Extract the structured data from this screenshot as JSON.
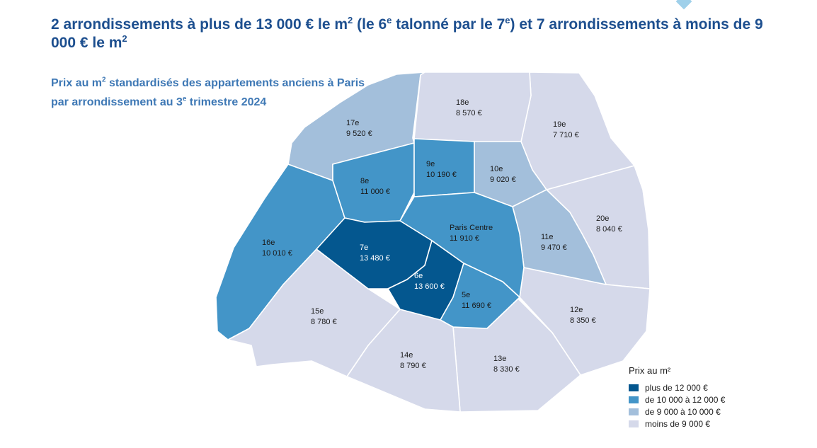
{
  "headline": {
    "part1": "2 arrondissements à plus de 13 000 € le m",
    "sup1": "2",
    "part2": " (le 6",
    "sup2": "e",
    "part3": " talonné par le 7",
    "sup3": "e",
    "part4": ") et 7 arrondissements à moins de 9 000 € le m",
    "sup4": "2"
  },
  "subtitle": {
    "part1": "Prix au m",
    "sup1": "2",
    "part2": " standardisés des appartements anciens à Paris par arrondissement au 3",
    "sup2": "e",
    "part3": " trimestre 2024"
  },
  "colors": {
    "class_1": "#04578f",
    "class_2": "#4395c8",
    "class_3": "#a3bfdb",
    "class_4": "#d5d9ea"
  },
  "districts": [
    {
      "id": "paris-centre",
      "name": "Paris Centre",
      "price": "11 910 €",
      "class": 2
    },
    {
      "id": "5e",
      "name": "5e",
      "price": "11 690 €",
      "class": 2
    },
    {
      "id": "6e",
      "name": "6e",
      "price": "13 600 €",
      "class": 1
    },
    {
      "id": "7e",
      "name": "7e",
      "price": "13 480 €",
      "class": 1
    },
    {
      "id": "8e",
      "name": "8e",
      "price": "11 000 €",
      "class": 2
    },
    {
      "id": "9e",
      "name": "9e",
      "price": "10 190 €",
      "class": 2
    },
    {
      "id": "10e",
      "name": "10e",
      "price": "9 020 €",
      "class": 3
    },
    {
      "id": "11e",
      "name": "11e",
      "price": "9 470 €",
      "class": 3
    },
    {
      "id": "12e",
      "name": "12e",
      "price": "8 350 €",
      "class": 4
    },
    {
      "id": "13e",
      "name": "13e",
      "price": "8 330 €",
      "class": 4
    },
    {
      "id": "14e",
      "name": "14e",
      "price": "8 790 €",
      "class": 4
    },
    {
      "id": "15e",
      "name": "15e",
      "price": "8 780 €",
      "class": 4
    },
    {
      "id": "16e",
      "name": "16e",
      "price": "10 010 €",
      "class": 2
    },
    {
      "id": "17e",
      "name": "17e",
      "price": "9 520 €",
      "class": 3
    },
    {
      "id": "18e",
      "name": "18e",
      "price": "8 570 €",
      "class": 4
    },
    {
      "id": "19e",
      "name": "19e",
      "price": "7 710 €",
      "class": 4
    },
    {
      "id": "20e",
      "name": "20e",
      "price": "8 040 €",
      "class": 4
    }
  ],
  "legend": {
    "title": "Prix au m²",
    "items": [
      {
        "label": "plus de 12 000 €",
        "class": 1
      },
      {
        "label": "de 10 000 à 12 000 €",
        "class": 2
      },
      {
        "label": "de 9 000 à 10 000 €",
        "class": 3
      },
      {
        "label": "moins de 9 000 €",
        "class": 4
      }
    ]
  }
}
